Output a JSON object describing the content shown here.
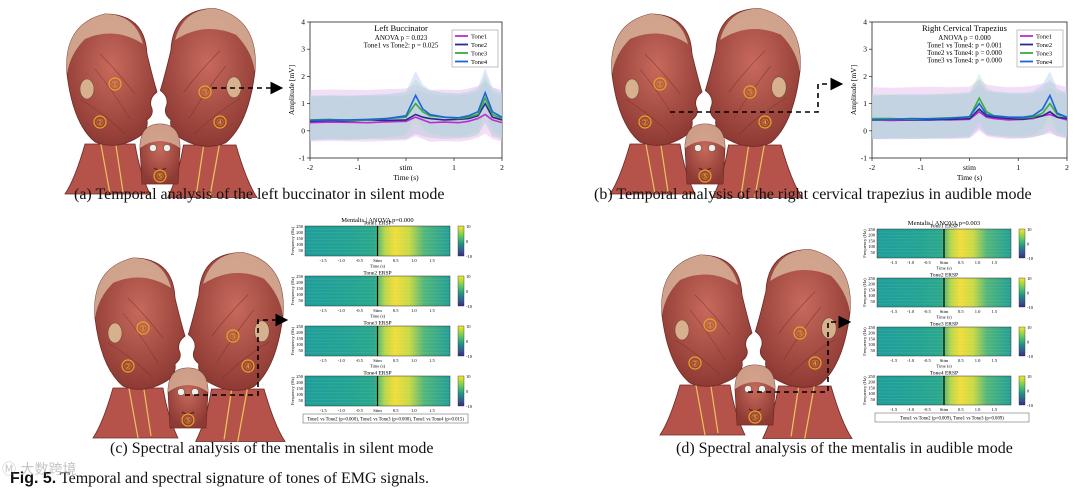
{
  "panels": [
    {
      "caption": "(a) Temporal analysis of the left buccinator in silent mode",
      "chart": {
        "type": "line",
        "title": "Left Buccinator",
        "stats": [
          "ANOVA p = 0.023",
          "Tone1 vs Tone2: p = 0.025"
        ],
        "xlabel": "Time (s)",
        "ylabel": "Amplitude [mV]",
        "xticks": [
          "-2",
          "-1",
          "stim",
          "1",
          "2"
        ],
        "yticks": [
          "-1",
          "0",
          "1",
          "2",
          "3",
          "4"
        ],
        "legend": [
          "Tone1",
          "Tone2",
          "Tone3",
          "Tone4"
        ],
        "markers": [
          "①",
          "②",
          "③",
          "④",
          "⑤"
        ]
      }
    },
    {
      "caption": "(b) Temporal analysis of the right cervical trapezius in audible mode",
      "chart": {
        "type": "line",
        "title": "Right Cervical Trapezius",
        "stats": [
          "ANOVA p = 0.000",
          "Tone1 vs Tone4: p = 0.001",
          "Tone2 vs Tone4: p = 0.000",
          "Tone3 vs Tone4: p = 0.000"
        ],
        "xlabel": "Time (s)",
        "ylabel": "Amplitude [mV]",
        "xticks": [
          "-2",
          "-1",
          "stim",
          "1",
          "2"
        ],
        "yticks": [
          "-1",
          "0",
          "1",
          "2",
          "3",
          "4"
        ],
        "legend": [
          "Tone1",
          "Tone2",
          "Tone3",
          "Tone4"
        ],
        "markers": [
          "①",
          "②",
          "③",
          "④",
          "⑤"
        ]
      }
    },
    {
      "caption": "(c) Spectral analysis of the mentalis in silent mode",
      "chart": {
        "type": "heatmap",
        "title": "Mentalis | ANOVA p=0.000",
        "subplots": [
          "Tone1 ERSP",
          "Tone2 ERSP",
          "Tone3 ERSP",
          "Tone4 ERSP"
        ],
        "ylabel": "Frequency (Hz)",
        "xlabel": "Time (s)",
        "footnote": "Tone1 vs Tone2 (p=0.000), Tone1 vs Tone3 (p=0.000), Tone1 vs Tone4 (p=0.015)",
        "markers": [
          "①",
          "②",
          "③",
          "④",
          "⑤"
        ]
      }
    },
    {
      "caption": "(d) Spectral analysis of the mentalis in audible mode",
      "chart": {
        "type": "heatmap",
        "title": "Mentalis | ANOVA p=0.003",
        "subplots": [
          "Tone1 ERSP",
          "Tone2 ERSP",
          "Tone3 ERSP",
          "Tone4 ERSP"
        ],
        "ylabel": "Frequency (Hz)",
        "xlabel": "Time (s)",
        "footnote": "Tone1 vs Tone2 (p=0.009), Tone1 vs Tone3 (p=0.009)",
        "markers": [
          "①",
          "②",
          "③",
          "④",
          "⑤"
        ]
      }
    }
  ],
  "heatmap_xticks": [
    "-1.5",
    "-1.0",
    "-0.5",
    "Stim",
    "0.5",
    "1.0",
    "1.5"
  ],
  "heatmap_yticks": [
    "250",
    "200",
    "150",
    "100",
    "50"
  ],
  "colorbar_ticks": [
    "10",
    "0",
    "-10"
  ],
  "figure_label": "Fig. 5.",
  "figure_caption": " Temporal and spectral signature of tones of EMG signals.",
  "watermark": "Ⓜ 大数跨境",
  "colors": {
    "tone1": "#c02bd0",
    "tone2": "#2a2a8c",
    "tone3": "#3aaa3a",
    "tone4": "#1a66d8",
    "muscle": "#b5524a",
    "skin": "#d8b39a",
    "marker": "#e8a820"
  },
  "chart_data": [
    {
      "type": "line",
      "title": "Left Buccinator",
      "xlabel": "Time (s)",
      "ylabel": "Amplitude [mV]",
      "xlim": [
        -2,
        2
      ],
      "ylim": [
        -1,
        4
      ],
      "x": [
        -2.0,
        -1.6,
        -1.2,
        -0.8,
        -0.4,
        0.0,
        0.2,
        0.35,
        0.5,
        0.8,
        1.1,
        1.3,
        1.5,
        1.65,
        1.8,
        2.0
      ],
      "series": [
        {
          "name": "Tone1",
          "values": [
            0.3,
            0.32,
            0.31,
            0.3,
            0.33,
            0.35,
            0.5,
            0.4,
            0.3,
            0.32,
            0.3,
            0.35,
            0.45,
            0.6,
            0.4,
            0.3
          ]
        },
        {
          "name": "Tone2",
          "values": [
            0.35,
            0.38,
            0.36,
            0.4,
            0.38,
            0.4,
            0.6,
            0.5,
            0.45,
            0.4,
            0.42,
            0.45,
            0.55,
            1.0,
            0.5,
            0.4
          ]
        },
        {
          "name": "Tone3",
          "values": [
            0.4,
            0.42,
            0.38,
            0.4,
            0.45,
            0.5,
            1.0,
            0.7,
            0.55,
            0.5,
            0.45,
            0.5,
            0.6,
            1.2,
            0.6,
            0.45
          ]
        },
        {
          "name": "Tone4",
          "values": [
            0.38,
            0.4,
            0.4,
            0.42,
            0.45,
            0.55,
            1.3,
            0.8,
            0.6,
            0.5,
            0.48,
            0.55,
            0.7,
            1.4,
            0.7,
            0.5
          ]
        }
      ]
    },
    {
      "type": "line",
      "title": "Right Cervical Trapezius",
      "xlabel": "Time (s)",
      "ylabel": "Amplitude [mV]",
      "xlim": [
        -2,
        2
      ],
      "ylim": [
        -1,
        4
      ],
      "x": [
        -2.0,
        -1.6,
        -1.2,
        -0.8,
        -0.4,
        0.0,
        0.2,
        0.35,
        0.5,
        0.8,
        1.1,
        1.3,
        1.5,
        1.65,
        1.8,
        2.0
      ],
      "series": [
        {
          "name": "Tone1",
          "values": [
            0.4,
            0.38,
            0.4,
            0.42,
            0.4,
            0.42,
            0.7,
            0.5,
            0.45,
            0.4,
            0.42,
            0.45,
            0.55,
            0.6,
            0.5,
            0.4
          ]
        },
        {
          "name": "Tone2",
          "values": [
            0.4,
            0.42,
            0.4,
            0.4,
            0.42,
            0.45,
            0.8,
            0.55,
            0.5,
            0.45,
            0.42,
            0.48,
            0.55,
            0.7,
            0.5,
            0.45
          ]
        },
        {
          "name": "Tone3",
          "values": [
            0.45,
            0.45,
            0.42,
            0.45,
            0.48,
            0.5,
            1.2,
            0.7,
            0.55,
            0.5,
            0.48,
            0.5,
            0.65,
            1.0,
            0.6,
            0.5
          ]
        },
        {
          "name": "Tone4",
          "values": [
            0.4,
            0.42,
            0.45,
            0.44,
            0.46,
            0.52,
            1.0,
            0.6,
            0.55,
            0.5,
            0.5,
            0.55,
            0.8,
            1.3,
            0.65,
            0.5
          ]
        }
      ]
    },
    {
      "type": "heatmap",
      "title": "Mentalis | ANOVA p=0.000",
      "xlabel": "Time (s)",
      "ylabel": "Frequency (Hz)",
      "xlim": [
        -2,
        2
      ],
      "ylim": [
        0,
        250
      ],
      "clim": [
        -10,
        10
      ]
    },
    {
      "type": "heatmap",
      "title": "Mentalis | ANOVA p=0.003",
      "xlabel": "Time (s)",
      "ylabel": "Frequency (Hz)",
      "xlim": [
        -2,
        2
      ],
      "ylim": [
        0,
        250
      ],
      "clim": [
        -10,
        10
      ]
    }
  ]
}
